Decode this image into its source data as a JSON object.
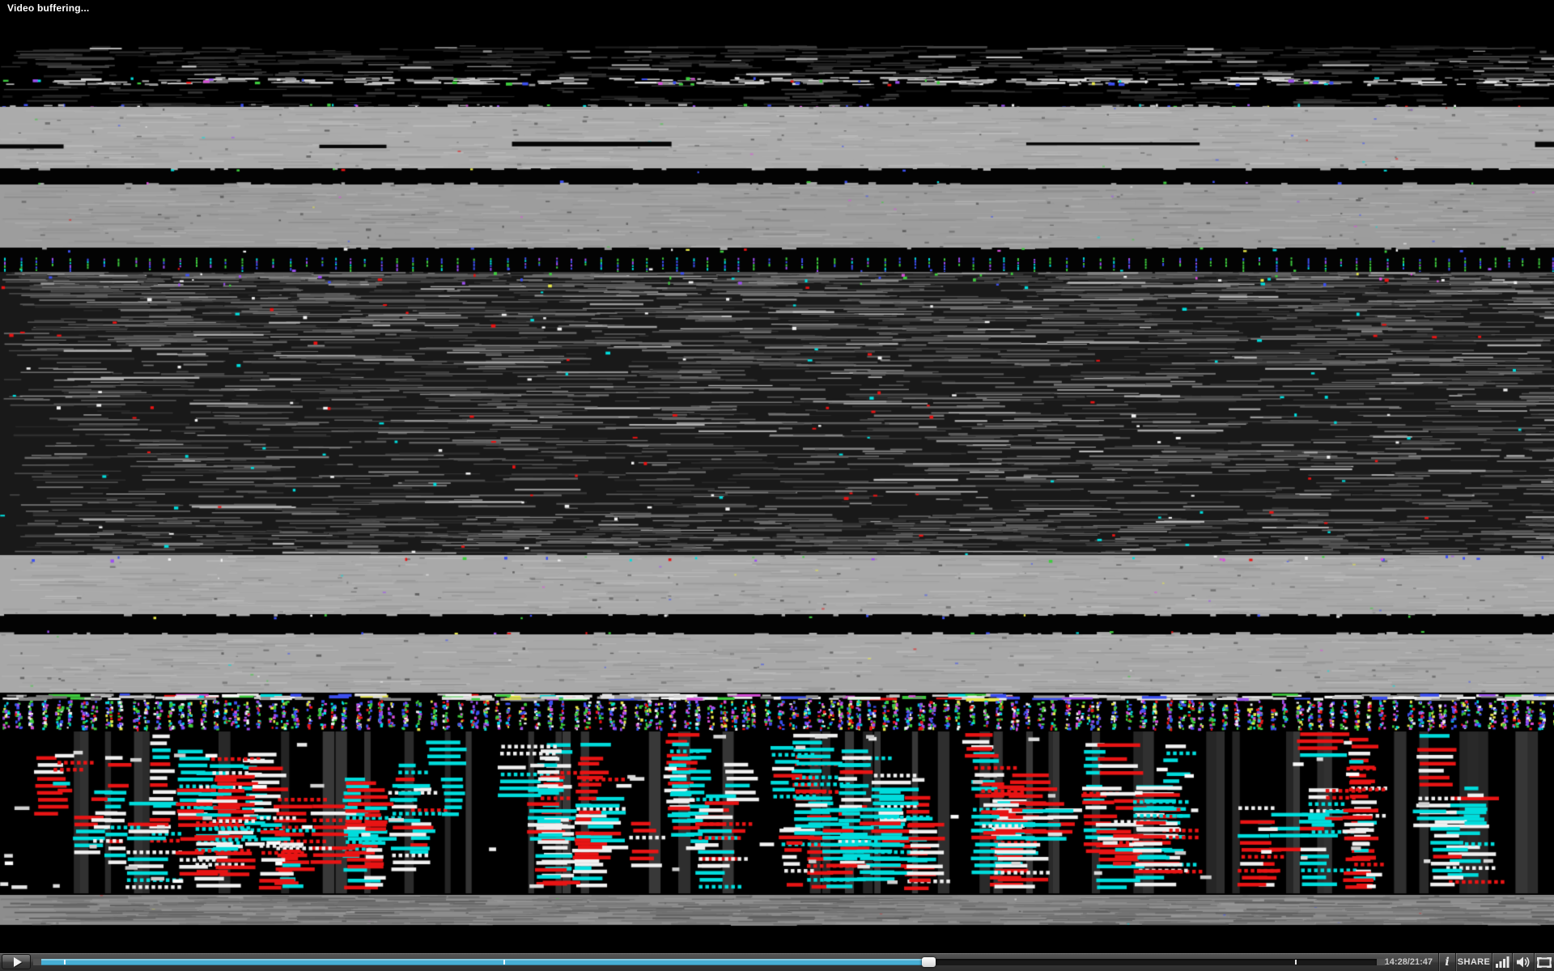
{
  "overlay": {
    "buffering_text": "Video buffering..."
  },
  "player": {
    "time_display": "14:28/21:47",
    "current_time": "14:28",
    "duration": "21:47",
    "progress_percent": 66.4,
    "tick_positions_percent": [
      1.7,
      34.6,
      93.9
    ],
    "info_button_label": "i",
    "share_button_label": "SHARE",
    "icons": [
      "play-icon",
      "stats-bars-icon",
      "volume-icon",
      "fullscreen-icon"
    ],
    "colors": {
      "progress_fill": "#47afd5",
      "bar_gradient_top": "#565656",
      "bar_gradient_bottom": "#2e2e2e",
      "time_text": "#c8c8c8",
      "icon_color": "#e8e8e8"
    }
  },
  "video": {
    "glitch_palette": {
      "red": "#e81414",
      "cyan": "#00dcdc",
      "white": "#f0f0f0",
      "green": "#3ecb3e",
      "blue": "#3c50f0",
      "purple": "#9b4ff0",
      "yellow": "#e8e84a",
      "magenta": "#d84fd8",
      "light_gray_band": "#abababff",
      "mid_gray_band": "#9d9d9dff",
      "bottom_gray_band": "#8d8d8dff",
      "dark_base": "#191919"
    }
  }
}
